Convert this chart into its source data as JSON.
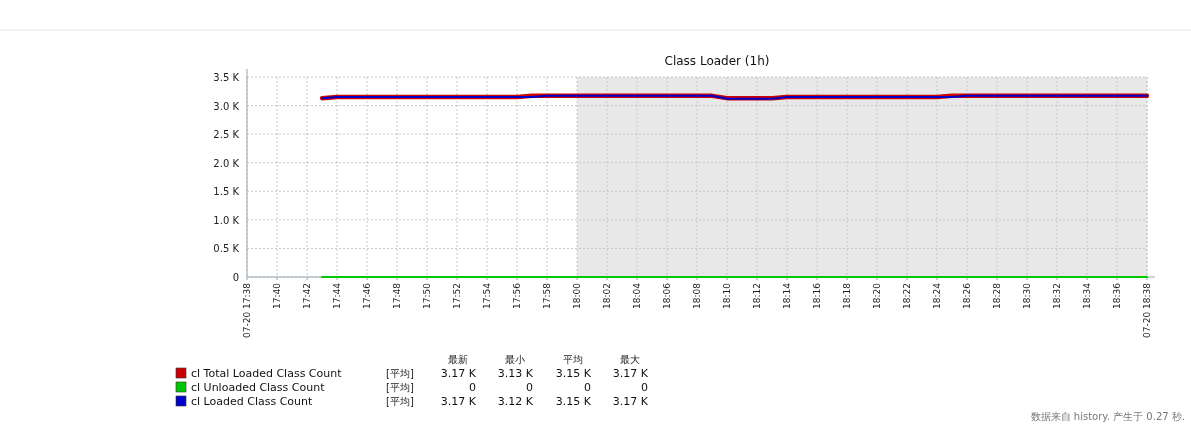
{
  "chart_data": {
    "type": "line",
    "title": "Class Loader (1h)",
    "x": [
      17.7167,
      17.7333,
      17.9333,
      17.95,
      17.9667,
      18.15,
      18.1667,
      18.2167,
      18.2333,
      18.4,
      18.4167,
      18.4333,
      18.6333
    ],
    "series": [
      {
        "name": "cl Total Loaded Class Count",
        "color": "#cc0000",
        "values": [
          3130,
          3150,
          3150,
          3170,
          3170,
          3170,
          3130,
          3130,
          3150,
          3150,
          3170,
          3170,
          3170
        ]
      },
      {
        "name": "cl Unloaded Class Count",
        "color": "#00c800",
        "values": [
          0,
          0,
          0,
          0,
          0,
          0,
          0,
          0,
          0,
          0,
          0,
          0,
          0
        ]
      },
      {
        "name": "cl Loaded Class Count",
        "color": "#0000cc",
        "values": [
          3130,
          3150,
          3150,
          3150,
          3170,
          3170,
          3120,
          3120,
          3150,
          3150,
          3150,
          3170,
          3170
        ]
      }
    ],
    "xlim": [
      17.6333,
      18.6333
    ],
    "xticks": [
      {
        "value": 17.6333,
        "label": "07-20 17:38"
      },
      {
        "value": 17.6667,
        "label": "17:40"
      },
      {
        "value": 17.7,
        "label": "17:42"
      },
      {
        "value": 17.7333,
        "label": "17:44"
      },
      {
        "value": 17.7667,
        "label": "17:46"
      },
      {
        "value": 17.8,
        "label": "17:48"
      },
      {
        "value": 17.8333,
        "label": "17:50"
      },
      {
        "value": 17.8667,
        "label": "17:52"
      },
      {
        "value": 17.9,
        "label": "17:54"
      },
      {
        "value": 17.9333,
        "label": "17:56"
      },
      {
        "value": 17.9667,
        "label": "17:58"
      },
      {
        "value": 18,
        "label": "18:00"
      },
      {
        "value": 18.0333,
        "label": "18:02"
      },
      {
        "value": 18.0667,
        "label": "18:04"
      },
      {
        "value": 18.1,
        "label": "18:06"
      },
      {
        "value": 18.1333,
        "label": "18:08"
      },
      {
        "value": 18.1667,
        "label": "18:10"
      },
      {
        "value": 18.2,
        "label": "18:12"
      },
      {
        "value": 18.2333,
        "label": "18:14"
      },
      {
        "value": 18.2667,
        "label": "18:16"
      },
      {
        "value": 18.3,
        "label": "18:18"
      },
      {
        "value": 18.3333,
        "label": "18:20"
      },
      {
        "value": 18.3667,
        "label": "18:22"
      },
      {
        "value": 18.4,
        "label": "18:24"
      },
      {
        "value": 18.4333,
        "label": "18:26"
      },
      {
        "value": 18.4667,
        "label": "18:28"
      },
      {
        "value": 18.5,
        "label": "18:30"
      },
      {
        "value": 18.5333,
        "label": "18:32"
      },
      {
        "value": 18.5667,
        "label": "18:34"
      },
      {
        "value": 18.6,
        "label": "18:36"
      },
      {
        "value": 18.6333,
        "label": "07-20 18:38"
      }
    ],
    "ylim": [
      0,
      3500
    ],
    "yticks": [
      0,
      {
        "value": 500,
        "label": "0.5 K"
      },
      {
        "value": 1000,
        "label": "1.0 K"
      },
      {
        "value": 1500,
        "label": "1.5 K"
      },
      {
        "value": 2000,
        "label": "2.0 K"
      },
      {
        "value": 2500,
        "label": "2.5 K"
      },
      {
        "value": 3000,
        "label": "3.0 K"
      },
      {
        "value": 3500,
        "label": "3.5 K"
      }
    ],
    "bands": [
      {
        "axis": "x",
        "from": 18,
        "to": 18.6333,
        "color": "#e8e8e8"
      }
    ],
    "grid": true,
    "line_style": "solid",
    "marker": "none",
    "legend": "bottom left",
    "annotations": [
      "最新",
      "最小",
      "平均",
      "最大",
      "[平均]",
      "3.17 K",
      "3.13 K",
      "3.15 K",
      "3.17 K",
      "[平均]",
      "0",
      "0",
      "0",
      "0",
      "[平均]",
      "3.17 K",
      "3.12 K",
      "3.15 K",
      "3.17 K",
      "数据来自 history. 产生于 0.27 秒."
    ]
  }
}
